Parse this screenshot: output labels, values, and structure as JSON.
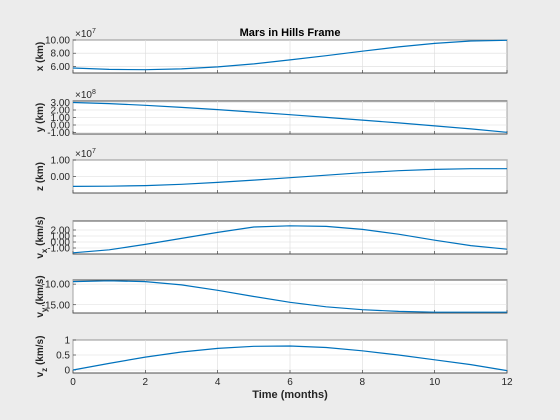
{
  "chart_data": {
    "type": "line",
    "title": "Mars in Hills Frame",
    "xlabel": "Time (months)",
    "xlim": [
      0,
      12
    ],
    "xticks": [
      0,
      2,
      4,
      6,
      8,
      10,
      12
    ],
    "xtick_labels": [
      "0",
      "2",
      "4",
      "6",
      "8",
      "10",
      "12"
    ],
    "grid": true,
    "series_color": "#0072bd",
    "subplots": [
      {
        "ylabel": "x (km)",
        "exponent": "7",
        "ylim": [
          5.0,
          10.0
        ],
        "yticks": [
          6,
          8,
          10
        ],
        "ytick_labels": [
          "6.00",
          "8.00",
          "10.00"
        ],
        "x": [
          0,
          1,
          2,
          3,
          4,
          5,
          6,
          7,
          8,
          9,
          10,
          11,
          12
        ],
        "y": [
          5.75,
          5.55,
          5.5,
          5.62,
          5.92,
          6.38,
          6.98,
          7.62,
          8.3,
          8.95,
          9.48,
          9.85,
          9.95
        ]
      },
      {
        "ylabel": "y (km)",
        "exponent": "8",
        "ylim": [
          -1.2,
          3.2
        ],
        "yticks": [
          -1,
          0,
          1,
          2,
          3
        ],
        "ytick_labels": [
          "-1.00",
          "0.00",
          "1.00",
          "2.00",
          "3.00"
        ],
        "x": [
          0,
          1,
          2,
          3,
          4,
          5,
          6,
          7,
          8,
          9,
          10,
          11,
          12
        ],
        "y": [
          3.0,
          2.85,
          2.62,
          2.35,
          2.05,
          1.72,
          1.38,
          1.02,
          0.65,
          0.28,
          -0.12,
          -0.52,
          -0.98
        ]
      },
      {
        "ylabel": "z (km)",
        "exponent": "7",
        "ylim": [
          -1.0,
          1.0
        ],
        "yticks": [
          0,
          1
        ],
        "ytick_labels": [
          "0.00",
          "1.00"
        ],
        "x": [
          0,
          1,
          2,
          3,
          4,
          5,
          6,
          7,
          8,
          9,
          10,
          11,
          12
        ],
        "y": [
          -0.6,
          -0.59,
          -0.55,
          -0.47,
          -0.36,
          -0.22,
          -0.07,
          0.08,
          0.23,
          0.35,
          0.43,
          0.47,
          0.47
        ]
      },
      {
        "ylabel_main": "v",
        "ylabel_sub": "x",
        "ylabel_unit": " (km/s)",
        "ylim": [
          -2.0,
          3.5
        ],
        "yticks": [
          -1,
          0,
          1,
          2
        ],
        "ytick_labels": [
          "-1.00",
          "0.00",
          "1.00",
          "2.00"
        ],
        "x": [
          0,
          1,
          2,
          3,
          4,
          5,
          6,
          7,
          8,
          9,
          10,
          11,
          12
        ],
        "y": [
          -1.8,
          -1.3,
          -0.4,
          0.6,
          1.6,
          2.5,
          2.7,
          2.6,
          2.1,
          1.3,
          0.3,
          -0.6,
          -1.2
        ]
      },
      {
        "ylabel_main": "v",
        "ylabel_sub": "y",
        "ylabel_unit": " (km/s)",
        "ylim": [
          -17.0,
          -9.0
        ],
        "yticks": [
          -10,
          -15
        ],
        "ytick_labels": [
          "-10.00",
          "-15.00"
        ],
        "x": [
          0,
          1,
          2,
          3,
          4,
          5,
          6,
          7,
          8,
          9,
          10,
          11,
          12
        ],
        "y": [
          -9.4,
          -9.2,
          -9.4,
          -10.2,
          -11.5,
          -13.0,
          -14.4,
          -15.5,
          -16.2,
          -16.6,
          -16.8,
          -16.8,
          -16.8
        ]
      },
      {
        "ylabel_main": "v",
        "ylabel_sub": "z",
        "ylabel_unit": " (km/s)",
        "ylim": [
          -0.1,
          1.0
        ],
        "yticks": [
          0,
          0.5,
          1
        ],
        "ytick_labels": [
          "0",
          "0.5",
          "1"
        ],
        "x": [
          0,
          1,
          2,
          3,
          4,
          5,
          6,
          7,
          8,
          9,
          10,
          11,
          12
        ],
        "y": [
          0.0,
          0.22,
          0.43,
          0.6,
          0.72,
          0.79,
          0.8,
          0.75,
          0.64,
          0.5,
          0.34,
          0.18,
          -0.02
        ]
      }
    ]
  }
}
